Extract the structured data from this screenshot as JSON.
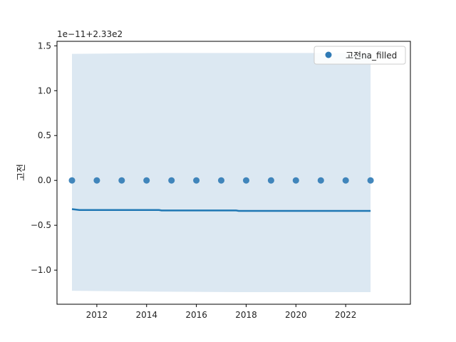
{
  "chart_data": {
    "type": "scatter",
    "offset_label": "1e−11+2.33e2",
    "ylabel": "고전",
    "xlabel": "",
    "x": [
      2011,
      2012,
      2013,
      2014,
      2015,
      2016,
      2017,
      2018,
      2019,
      2020,
      2021,
      2022,
      2023
    ],
    "y": [
      0,
      0,
      0,
      0,
      0,
      0,
      0,
      0,
      0,
      0,
      0,
      0,
      0
    ],
    "xlim": [
      2010.4,
      2024.6
    ],
    "ylim": [
      -1.38,
      1.55
    ],
    "x_ticks": [
      2012,
      2014,
      2016,
      2018,
      2020,
      2022
    ],
    "x_tick_labels": [
      "2012",
      "2014",
      "2016",
      "2018",
      "2020",
      "2022"
    ],
    "y_ticks": [
      1.5,
      1.0,
      0.5,
      0.0,
      -0.5,
      -1.0
    ],
    "y_tick_labels": [
      "1.5",
      "1.0",
      "0.5",
      "0.0",
      "−0.5",
      "−1.0"
    ],
    "regression_line": {
      "x": [
        2011,
        2011.3,
        2014.5,
        2014.6,
        2017.6,
        2017.7,
        2023
      ],
      "y": [
        -0.32,
        -0.33,
        -0.33,
        -0.335,
        -0.335,
        -0.34,
        -0.34
      ]
    },
    "confidence_band": {
      "x": [
        2011,
        2014.6,
        2017.6,
        2023
      ],
      "upper": [
        1.41,
        1.42,
        1.42,
        1.42
      ],
      "lower": [
        -1.23,
        -1.24,
        -1.245,
        -1.245
      ]
    },
    "legend": {
      "label": "고전na_filled",
      "position": "top-right"
    },
    "grid": false,
    "colors": {
      "point": "#2f7ab5",
      "line": "#1f77b4",
      "band": "#dce8f2"
    }
  }
}
